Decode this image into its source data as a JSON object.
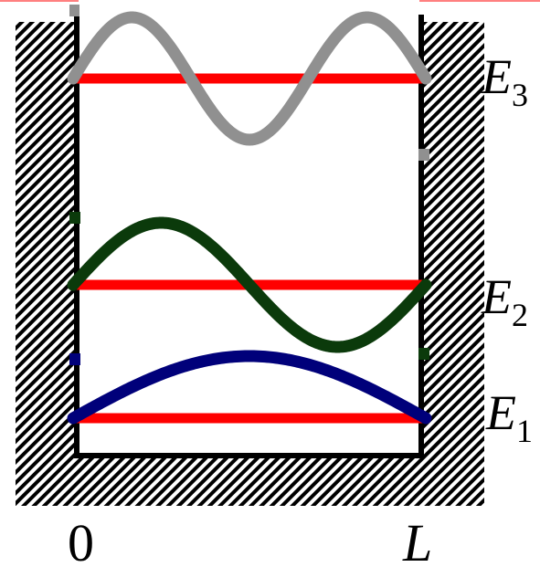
{
  "diagram": {
    "energy_levels": [
      {
        "symbol": "E",
        "subscript": "3",
        "wave_color": "#909090",
        "half_waves": 3
      },
      {
        "symbol": "E",
        "subscript": "2",
        "wave_color": "#0b3a0b",
        "half_waves": 2
      },
      {
        "symbol": "E",
        "subscript": "1",
        "wave_color": "#00007a",
        "half_waves": 1
      }
    ],
    "x_axis": {
      "left_label": "0",
      "right_label": "L"
    },
    "colors": {
      "level_line": "#ff0000",
      "wall": "#000000",
      "top_rule": "#ff8080"
    }
  }
}
